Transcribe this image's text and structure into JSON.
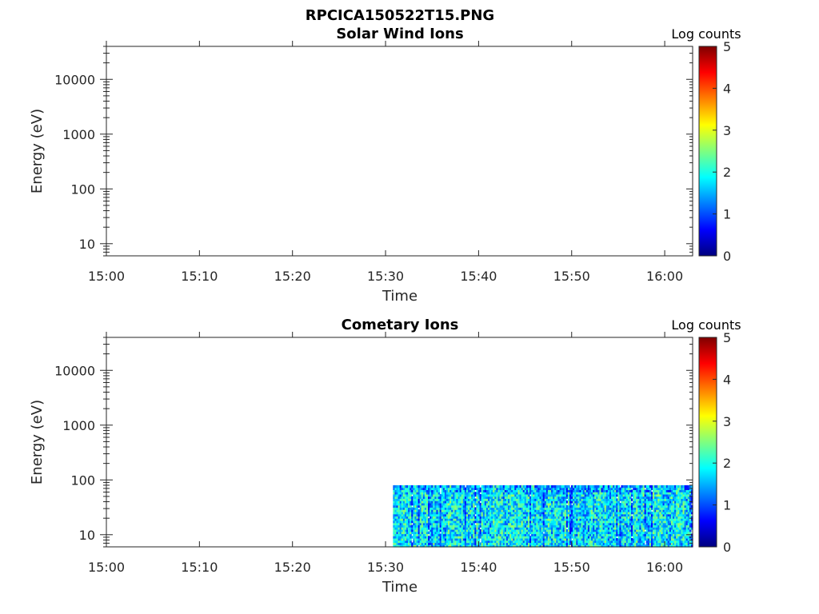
{
  "figure_title": "RPCICA150522T15.PNG",
  "colorbar_gradient": [
    "#00007f",
    "#0000ff",
    "#007fff",
    "#00ffff",
    "#7fff7f",
    "#ffff00",
    "#ff7f00",
    "#ff0000",
    "#7f0000"
  ],
  "chart_data": [
    {
      "type": "heatmap",
      "title": "Solar Wind Ions",
      "xlabel": "Time",
      "ylabel": "Energy (eV)",
      "x_ticks": [
        "15:00",
        "15:10",
        "15:20",
        "15:30",
        "15:40",
        "15:50",
        "16:00"
      ],
      "x_range_minutes": [
        0,
        63
      ],
      "y_scale": "log",
      "y_ticks": [
        10,
        100,
        1000,
        10000
      ],
      "y_tick_labels": [
        "10",
        "100",
        "1000",
        "10000"
      ],
      "ylim": [
        6,
        40000
      ],
      "colorbar": {
        "label": "Log counts",
        "range": [
          0,
          5
        ],
        "ticks": [
          "0",
          "1",
          "2",
          "3",
          "4",
          "5"
        ]
      },
      "data_region": null
    },
    {
      "type": "heatmap",
      "title": "Cometary Ions",
      "xlabel": "Time",
      "ylabel": "Energy (eV)",
      "x_ticks": [
        "15:00",
        "15:10",
        "15:20",
        "15:30",
        "15:40",
        "15:50",
        "16:00"
      ],
      "x_range_minutes": [
        0,
        63
      ],
      "y_scale": "log",
      "y_ticks": [
        10,
        100,
        1000,
        10000
      ],
      "y_tick_labels": [
        "10",
        "100",
        "1000",
        "10000"
      ],
      "ylim": [
        6,
        40000
      ],
      "colorbar": {
        "label": "Log counts",
        "range": [
          0,
          5
        ],
        "ticks": [
          "0",
          "1",
          "2",
          "3",
          "4",
          "5"
        ]
      },
      "data_region": {
        "time_start_minutes": 30.8,
        "time_end_minutes": 63,
        "energy_min_eV": 6,
        "energy_max_eV": 80,
        "typical_log_counts": [
          1,
          2.5
        ]
      }
    }
  ]
}
